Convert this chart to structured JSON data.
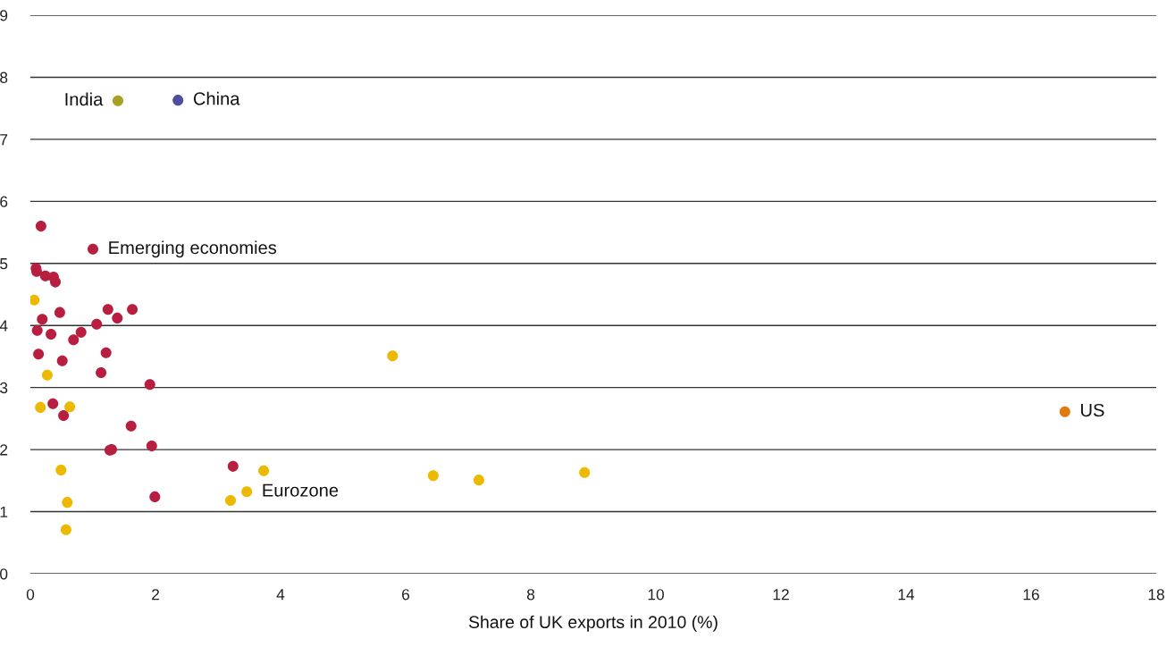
{
  "chart_data": {
    "type": "scatter",
    "xlabel": "Share of UK exports in 2010 (%)",
    "xlim": [
      0,
      18
    ],
    "xticks": [
      0,
      2,
      4,
      6,
      8,
      10,
      12,
      14,
      16,
      18
    ],
    "ylim": [
      0,
      9
    ],
    "yticks": [
      0,
      1,
      2,
      3,
      4,
      5,
      6,
      7,
      8,
      9
    ],
    "grid": "y",
    "marker": "circle",
    "series": [
      {
        "color": "#b81e40",
        "x": [
          0.17,
          1.0,
          0.09,
          0.1,
          0.24,
          0.37,
          0.4,
          0.47,
          0.19,
          0.11,
          0.33,
          1.24,
          1.63,
          1.39,
          1.06,
          0.81,
          0.69,
          0.13,
          1.21,
          0.51,
          1.13,
          1.91,
          0.36,
          0.53,
          1.61,
          1.3,
          1.27,
          1.94,
          3.24,
          1.99
        ],
        "values": [
          5.6,
          5.23,
          4.92,
          4.87,
          4.8,
          4.78,
          4.7,
          4.21,
          4.1,
          3.92,
          3.86,
          4.26,
          4.26,
          4.12,
          4.02,
          3.89,
          3.77,
          3.54,
          3.56,
          3.43,
          3.24,
          3.05,
          2.74,
          2.55,
          2.38,
          2.0,
          1.99,
          2.06,
          1.73,
          1.24
        ]
      },
      {
        "color": "#ecb900",
        "x": [
          0.06,
          0.27,
          0.16,
          0.63,
          0.49,
          0.59,
          0.57,
          5.79,
          3.2,
          3.46,
          3.73,
          6.44,
          7.17,
          8.86
        ],
        "values": [
          4.41,
          3.2,
          2.68,
          2.69,
          1.67,
          1.15,
          0.71,
          3.51,
          1.18,
          1.32,
          1.66,
          1.58,
          1.51,
          1.63
        ]
      },
      {
        "color": "#a8a020",
        "x": [
          1.4
        ],
        "values": [
          7.62
        ]
      },
      {
        "color": "#4b4fa0",
        "x": [
          2.36
        ],
        "values": [
          7.63
        ]
      },
      {
        "color": "#e07b10",
        "x": [
          16.54
        ],
        "values": [
          2.61
        ]
      }
    ],
    "annotations": [
      {
        "text": "India",
        "x": 1.4,
        "y": 7.62
      },
      {
        "text": "China",
        "x": 2.36,
        "y": 7.63
      },
      {
        "text": "Emerging economies",
        "x": 1.0,
        "y": 5.23
      },
      {
        "text": "US",
        "x": 16.54,
        "y": 2.61
      },
      {
        "text": "Eurozone",
        "x": 3.46,
        "y": 1.32
      }
    ]
  }
}
